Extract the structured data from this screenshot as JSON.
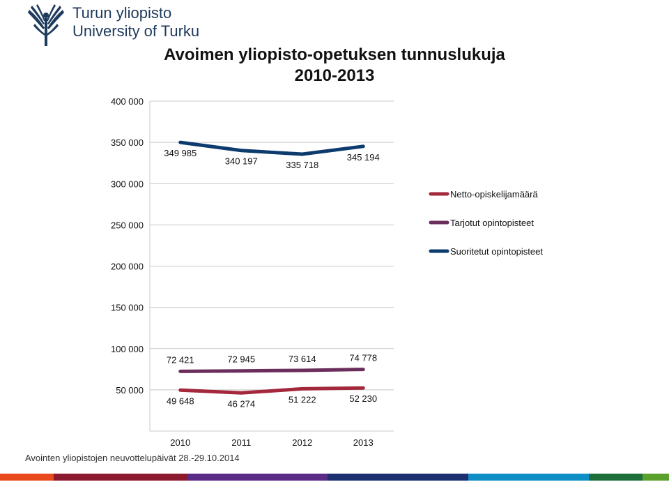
{
  "header": {
    "logo_line1": "Turun yliopisto",
    "logo_line2": "University of Turku",
    "title_line1": "Avoimen yliopisto-opetuksen tunnuslukuja",
    "title_line2": "2010-2013"
  },
  "footer": {
    "text": "Avointen yliopistojen neuvottelupäivät 28.-29.10.2014"
  },
  "colors": {
    "brand": "#1e3a5c",
    "stripe": [
      "#e8491d",
      "#8b1a2e",
      "#5b2a86",
      "#1c2f6e",
      "#0e8ec4",
      "#1c6f3a",
      "#5aa02c",
      "#f29a1b"
    ]
  },
  "chart_data": {
    "type": "line",
    "title": "Avoimen yliopisto-opetuksen tunnuslukuja 2010-2013",
    "categories": [
      "2010",
      "2011",
      "2012",
      "2013"
    ],
    "ylim": [
      0,
      400000
    ],
    "yticks": [
      0,
      50000,
      100000,
      150000,
      200000,
      250000,
      300000,
      350000,
      400000
    ],
    "ytick_labels": [
      "",
      "50 000",
      "100 000",
      "150 000",
      "200 000",
      "250 000",
      "300 000",
      "350 000",
      "400 000"
    ],
    "grid": true,
    "legend_position": "right",
    "series": [
      {
        "name": "Netto-opiskelijamäärä",
        "color": "#a3283c",
        "values": [
          49648,
          46274,
          51222,
          52230
        ],
        "labels": [
          "49 648",
          "46 274",
          "51 222",
          "52 230"
        ],
        "label_position": "below"
      },
      {
        "name": "Tarjotut opintopisteet",
        "color": "#6b2d5c",
        "values": [
          72421,
          72945,
          73614,
          74778
        ],
        "labels": [
          "72 421",
          "72 945",
          "73 614",
          "74 778"
        ],
        "label_position": "above"
      },
      {
        "name": "Suoritetut opintopisteet",
        "color": "#0d3b6e",
        "values": [
          349985,
          340197,
          335718,
          345194
        ],
        "labels": [
          "349 985",
          "340 197",
          "335 718",
          "345 194"
        ],
        "label_position": "below"
      }
    ]
  }
}
